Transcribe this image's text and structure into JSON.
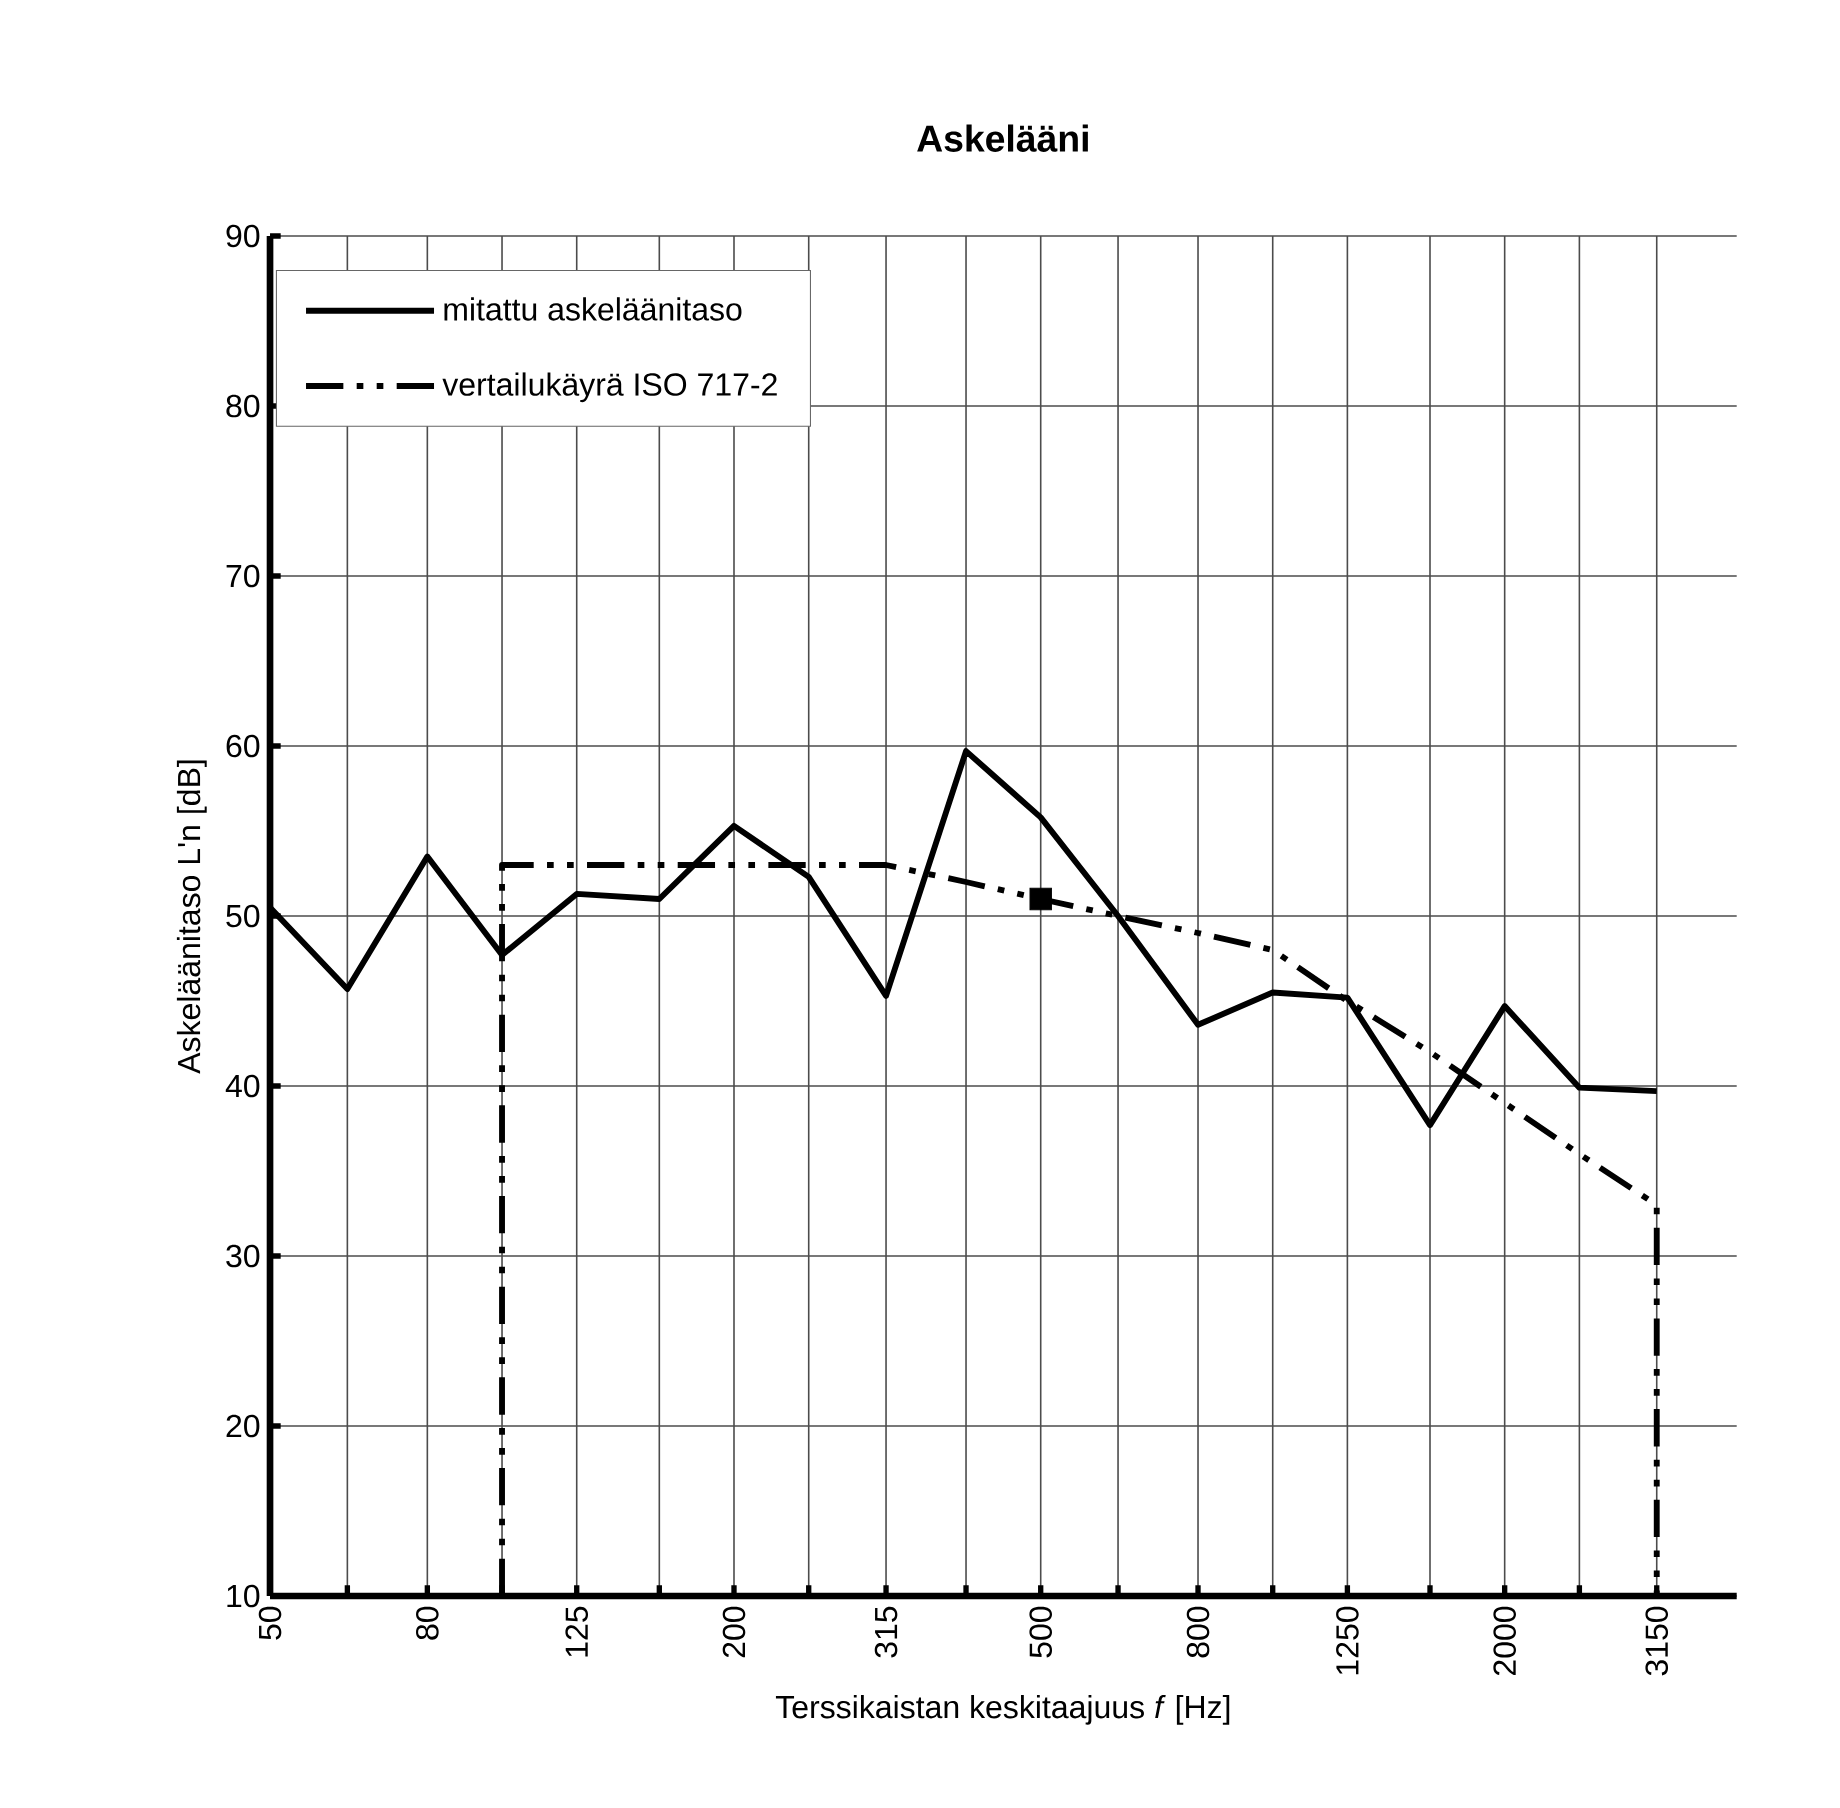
{
  "chart_data": {
    "type": "line",
    "title": "Askelääni",
    "xlabel": "Terssikaistan keskitaajuus *f* [Hz]",
    "ylabel": "Askeläänitaso L'n [dB]",
    "log": "x",
    "xlim": [
      50,
      4000
    ],
    "ylim": [
      10,
      90
    ],
    "xticks": [
      50,
      {
        "value": 63,
        "label": null
      },
      80,
      {
        "value": 100,
        "label": null
      },
      125,
      {
        "value": 160,
        "label": null
      },
      200,
      {
        "value": 250,
        "label": null
      },
      315,
      {
        "value": 400,
        "label": null
      },
      500,
      {
        "value": 630,
        "label": null
      },
      800,
      {
        "value": 1000,
        "label": null
      },
      1250,
      {
        "value": 1600,
        "label": null
      },
      2000,
      {
        "value": 2500,
        "label": null
      },
      3150
    ],
    "yticks": [
      10,
      20,
      30,
      40,
      50,
      60,
      70,
      80,
      90
    ],
    "grid": true,
    "legend": "top left",
    "series": [
      {
        "name": "mitattu askeläänitaso",
        "color": "#000000",
        "line_style": "solid",
        "x": [
          50,
          63,
          80,
          100,
          125,
          160,
          200,
          250,
          315,
          400,
          500,
          630,
          800,
          1000,
          1250,
          1600,
          2000,
          2500,
          3150
        ],
        "values": [
          50.5,
          45.7,
          53.5,
          47.7,
          51.3,
          51.0,
          55.3,
          52.3,
          45.3,
          59.7,
          55.8,
          50.0,
          43.6,
          45.5,
          45.2,
          37.7,
          44.7,
          39.9,
          39.7
        ]
      },
      {
        "name": "vertailukäyrä ISO 717-2",
        "color": "#000000",
        "line_style": "dashed",
        "x": [
          100,
          100,
          125,
          160,
          200,
          250,
          315,
          400,
          500,
          630,
          800,
          1000,
          1250,
          1600,
          2000,
          2500,
          3150,
          3150
        ],
        "values": [
          10,
          53,
          53,
          53,
          53,
          53,
          53,
          52,
          51,
          50,
          49,
          48,
          45,
          42,
          39,
          36,
          33,
          10
        ]
      },
      {
        "type": "scatter",
        "marker": "square",
        "color": "#000000",
        "x": [
          500
        ],
        "values": [
          51
        ]
      }
    ]
  }
}
